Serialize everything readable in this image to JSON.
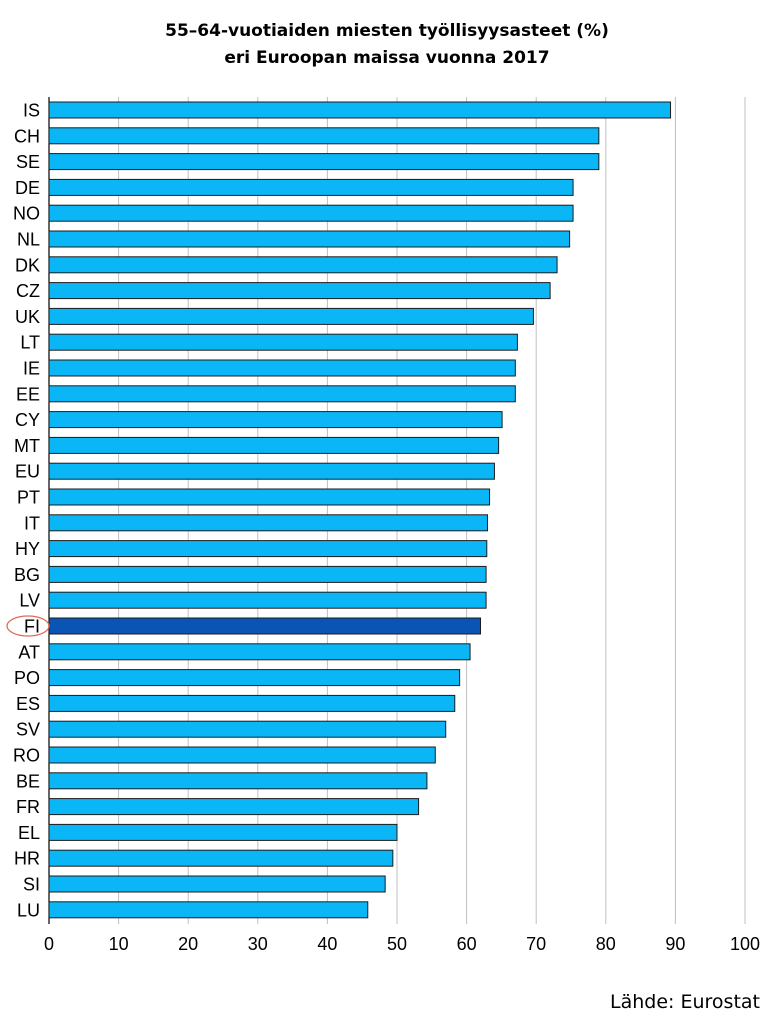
{
  "chart_data": {
    "type": "bar",
    "orientation": "horizontal",
    "title_lines": [
      "55–64-vuotiaiden miesten työllisyysasteet (%)",
      "eri Euroopan maissa vuonna 2017"
    ],
    "categories": [
      "IS",
      "CH",
      "SE",
      "DE",
      "NO",
      "NL",
      "DK",
      "CZ",
      "UK",
      "LT",
      "IE",
      "EE",
      "CY",
      "MT",
      "EU",
      "PT",
      "IT",
      "HY",
      "BG",
      "LV",
      "FI",
      "AT",
      "PO",
      "ES",
      "SV",
      "RO",
      "BE",
      "FR",
      "EL",
      "HR",
      "SI",
      "LU"
    ],
    "values": [
      89.3,
      79.0,
      79.0,
      75.3,
      75.3,
      74.8,
      73.0,
      72.0,
      69.6,
      67.3,
      67.0,
      67.0,
      65.1,
      64.6,
      64.0,
      63.3,
      63.0,
      62.9,
      62.8,
      62.8,
      62.0,
      60.5,
      59.0,
      58.3,
      57.0,
      55.5,
      54.3,
      53.1,
      50.0,
      49.4,
      48.3,
      45.8
    ],
    "highlight": "FI",
    "xlim": [
      0,
      100
    ],
    "xticks": [
      0,
      10,
      20,
      30,
      40,
      50,
      60,
      70,
      80,
      90,
      100
    ],
    "grid": true,
    "colors": {
      "bar": "#0bb6f7",
      "highlight_bar": "#0a55b4",
      "bar_edge": "#1c1c1c",
      "grid": "#c0c0c0",
      "highlight_ring": "#e06a5a"
    }
  },
  "source": "Lähde: Eurostat"
}
